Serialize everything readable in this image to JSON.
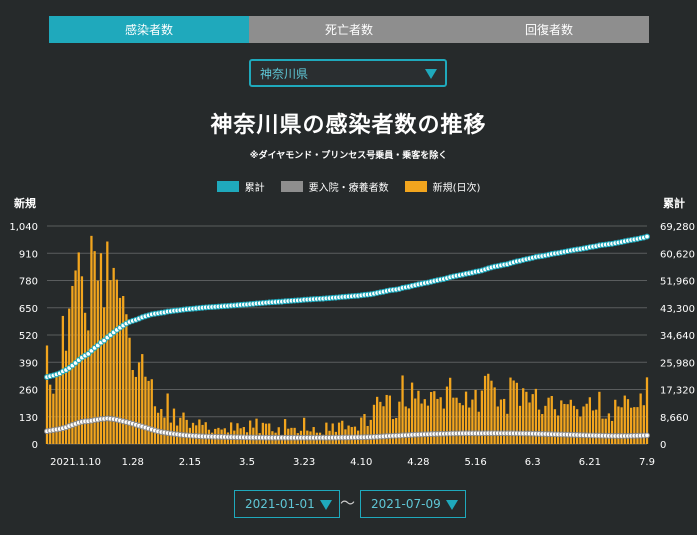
{
  "tabs": [
    {
      "label": "感染者数",
      "active": true
    },
    {
      "label": "死亡者数",
      "active": false
    },
    {
      "label": "回復者数",
      "active": false
    }
  ],
  "prefecture_select": {
    "value": "神奈川県"
  },
  "chart_data": {
    "type": "bar",
    "title": "神奈川県の感染者数の推移",
    "subtitle": "※ダイヤモンド・プリンセス号乗員・乗客を除く",
    "left_axis_label": "新規",
    "right_axis_label": "累計",
    "left_ticks": [
      "0",
      "130",
      "260",
      "390",
      "520",
      "650",
      "780",
      "910",
      "1,040"
    ],
    "right_ticks": [
      "0",
      "8,660",
      "17,320",
      "25,980",
      "34,640",
      "43,300",
      "51,960",
      "60,620",
      "69,280"
    ],
    "ylim_left": [
      0,
      1040
    ],
    "ylim_right": [
      0,
      69280
    ],
    "x_ticks": [
      "2021.1.10",
      "1.28",
      "2.15",
      "3.5",
      "3.23",
      "4.10",
      "4.28",
      "5.16",
      "6.3",
      "6.21",
      "7.9"
    ],
    "x_tick_day_index": [
      9,
      27,
      45,
      63,
      81,
      99,
      117,
      135,
      153,
      171,
      189
    ],
    "start_date": "2021-01-01",
    "end_date": "2021-07-09",
    "legend": [
      {
        "name": "累計",
        "color": "#1fa9bc"
      },
      {
        "name": "要入院・療養者数",
        "color": "#8e8e8e"
      },
      {
        "name": "新規(日次)",
        "color": "#f2a51e"
      }
    ],
    "series": [
      {
        "name": "新規(日次)",
        "axis": "left",
        "values": [
          470,
          283,
          240,
          324,
          347,
          611,
          445,
          646,
          754,
          828,
          914,
          800,
          626,
          542,
          993,
          920,
          780,
          910,
          652,
          966,
          782,
          840,
          784,
          697,
          706,
          619,
          507,
          353,
          320,
          389,
          429,
          321,
          301,
          309,
          180,
          149,
          167,
          126,
          241,
          102,
          169,
          88,
          125,
          150,
          115,
          77,
          101,
          89,
          117,
          91,
          104,
          68,
          54,
          72,
          77,
          69,
          75,
          55,
          103,
          64,
          99,
          75,
          81,
          56,
          112,
          78,
          121,
          52,
          101,
          97,
          98,
          61,
          54,
          80,
          41,
          119,
          73,
          77,
          77,
          52,
          63,
          125,
          64,
          60,
          81,
          54,
          54,
          44,
          102,
          63,
          98,
          58,
          102,
          111,
          70,
          88,
          81,
          83,
          64,
          126,
          143,
          86,
          115,
          187,
          225,
          201,
          180,
          234,
          231,
          119,
          124,
          202,
          327,
          179,
          170,
          293,
          217,
          254,
          193,
          214,
          183,
          248,
          252,
          215,
          223,
          169,
          274,
          316,
          221,
          221,
          196,
          185,
          250,
          174,
          212,
          258,
          154,
          255,
          325,
          335,
          302,
          270,
          179,
          212,
          215,
          144,
          317,
          303,
          292,
          182,
          266,
          249,
          198,
          238,
          263,
          164,
          143,
          182,
          221,
          229,
          166,
          136,
          208,
          191,
          190,
          211,
          182,
          166,
          131,
          179,
          192,
          223,
          160,
          164,
          249,
          121,
          121,
          146,
          110,
          211,
          179,
          175,
          231,
          214,
          173,
          176,
          176,
          241,
          185,
          318
        ]
      },
      {
        "name": "累計",
        "axis": "right",
        "values": [
          21270,
          21550,
          21790,
          22110,
          22460,
          23070,
          23520,
          24160,
          24920,
          25750,
          26660,
          27460,
          28090,
          28630,
          29620,
          30540,
          31320,
          32230,
          32880,
          33850,
          34630,
          35470,
          36260,
          36960,
          37660,
          38280,
          38790,
          39140,
          39460,
          39850,
          40280,
          40600,
          40900,
          41210,
          41390,
          41540,
          41710,
          41830,
          42080,
          42180,
          42350,
          42440,
          42560,
          42710,
          42830,
          42910,
          43010,
          43100,
          43210,
          43300,
          43410,
          43470,
          43530,
          43600,
          43680,
          43750,
          43820,
          43880,
          43980,
          44040,
          44140,
          44220,
          44300,
          44350,
          44470,
          44540,
          44660,
          44720,
          44820,
          44910,
          45010,
          45070,
          45130,
          45210,
          45250,
          45370,
          45440,
          45520,
          45590,
          45650,
          45710,
          45840,
          45900,
          45960,
          46040,
          46100,
          46150,
          46200,
          46300,
          46360,
          46460,
          46520,
          46620,
          46730,
          46800,
          46890,
          46970,
          47060,
          47120,
          47250,
          47390,
          47480,
          47590,
          47780,
          48000,
          48200,
          48380,
          48620,
          48850,
          48970,
          49090,
          49290,
          49620,
          49800,
          49970,
          50260,
          50480,
          50730,
          50930,
          51140,
          51320,
          51570,
          51820,
          52040,
          52260,
          52430,
          52710,
          53020,
          53240,
          53460,
          53660,
          53850,
          54100,
          54270,
          54480,
          54740,
          54900,
          55150,
          55480,
          55810,
          56110,
          56380,
          56560,
          56770,
          56990,
          57130,
          57450,
          57750,
          58040,
          58230,
          58490,
          58740,
          58940,
          59180,
          59440,
          59600,
          59750,
          59930,
          60150,
          60380,
          60550,
          60680,
          60890,
          61080,
          61270,
          61480,
          61670,
          61830,
          61960,
          62140,
          62330,
          62560,
          62720,
          62880,
          63130,
          63250,
          63380,
          63520,
          63630,
          63840,
          64020,
          64200,
          64430,
          64640,
          64820,
          64990,
          65170,
          65410,
          65600,
          65920
        ]
      },
      {
        "name": "要入院・療養者数",
        "axis": "right",
        "values": [
          4070,
          4270,
          4440,
          4600,
          4760,
          5010,
          5300,
          5710,
          6040,
          6390,
          6770,
          7040,
          7190,
          7240,
          7400,
          7600,
          7740,
          7930,
          8000,
          8130,
          8030,
          7910,
          7710,
          7460,
          7210,
          6960,
          6720,
          6460,
          6120,
          5840,
          5550,
          5240,
          4920,
          4610,
          4310,
          4030,
          3800,
          3650,
          3490,
          3340,
          3200,
          3080,
          2940,
          2830,
          2750,
          2670,
          2600,
          2540,
          2480,
          2430,
          2390,
          2360,
          2330,
          2310,
          2290,
          2260,
          2240,
          2210,
          2190,
          2170,
          2150,
          2130,
          2110,
          2090,
          2070,
          2060,
          2050,
          2040,
          2030,
          2020,
          2010,
          2000,
          2010,
          2000,
          2010,
          2010,
          2000,
          2000,
          2000,
          2000,
          2000,
          2000,
          2010,
          2000,
          2000,
          2000,
          2010,
          2000,
          2000,
          2010,
          2020,
          2030,
          2050,
          2060,
          2080,
          2080,
          2100,
          2120,
          2140,
          2140,
          2160,
          2190,
          2210,
          2260,
          2310,
          2370,
          2430,
          2500,
          2560,
          2600,
          2630,
          2680,
          2750,
          2800,
          2840,
          2900,
          2960,
          3000,
          3040,
          3080,
          3110,
          3150,
          3180,
          3200,
          3230,
          3240,
          3280,
          3310,
          3340,
          3360,
          3370,
          3380,
          3390,
          3390,
          3390,
          3390,
          3380,
          3390,
          3400,
          3410,
          3410,
          3410,
          3410,
          3400,
          3400,
          3400,
          3390,
          3380,
          3370,
          3350,
          3330,
          3320,
          3310,
          3280,
          3260,
          3220,
          3190,
          3170,
          3140,
          3110,
          3080,
          3050,
          3030,
          3000,
          2970,
          2940,
          2900,
          2860,
          2830,
          2790,
          2760,
          2730,
          2710,
          2680,
          2670,
          2640,
          2610,
          2590,
          2570,
          2560,
          2550,
          2550,
          2560,
          2570,
          2590,
          2610,
          2640,
          2660,
          2690,
          2730
        ]
      }
    ]
  },
  "date_range": {
    "start": "2021-01-01",
    "end": "2021-07-09",
    "separator": "〜"
  }
}
